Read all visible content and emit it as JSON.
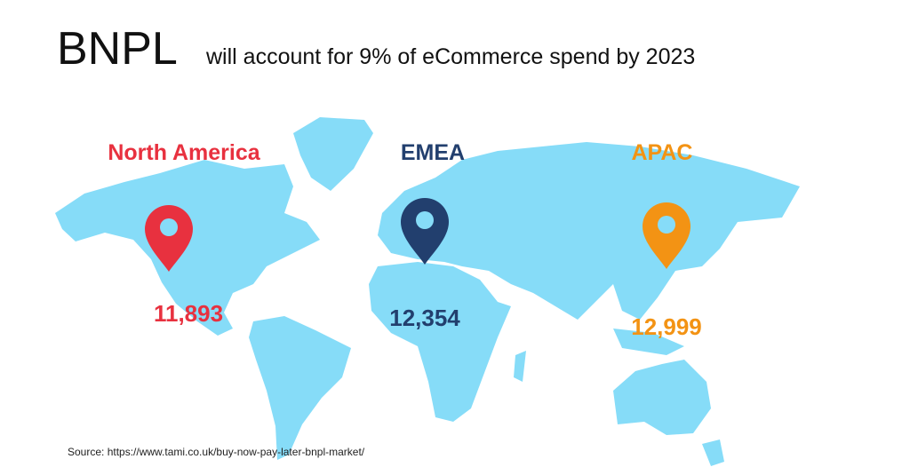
{
  "title": "BNPL",
  "subtitle": "will account for 9% of eCommerce spend by 2023",
  "regions": [
    {
      "name": "North America",
      "value": "11,893",
      "color": "#e8313f"
    },
    {
      "name": "EMEA",
      "value": "12,354",
      "color": "#223f6e"
    },
    {
      "name": "APAC",
      "value": "12,999",
      "color": "#f39314"
    }
  ],
  "source": "Source: https://www.tami.co.uk/buy-now-pay-later-bnpl-market/"
}
